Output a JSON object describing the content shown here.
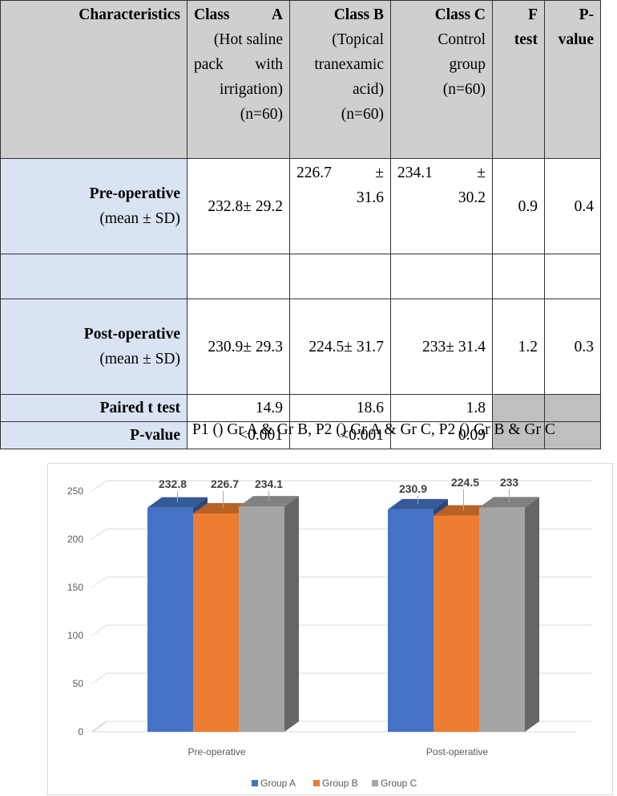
{
  "table": {
    "header": {
      "characteristics": "Characteristics",
      "class_a": [
        "Class",
        "A",
        "(Hot saline",
        "pack",
        "with",
        "irrigation)",
        "(n=60)"
      ],
      "class_b": [
        "Class B",
        "(Topical",
        "tranexamic",
        "acid)",
        "(n=60)"
      ],
      "class_c": [
        "Class C",
        "Control",
        "group",
        "(n=60)"
      ],
      "f_test": [
        "F",
        "test"
      ],
      "p_value": [
        "P-",
        "value"
      ]
    },
    "rows": {
      "pre": {
        "label": "Pre-operative",
        "sub": "(mean ± SD)",
        "a": "232.8± 29.2",
        "b_val": "226.7",
        "b_sd": "31.6",
        "c_val": "234.1",
        "c_sd": "30.2",
        "pm": "±",
        "f": "0.9",
        "p": "0.4"
      },
      "post": {
        "label": "Post-operative",
        "sub": "(mean ± SD)",
        "a": "230.9± 29.3",
        "b": "224.5± 31.7",
        "c": "233± 31.4",
        "f": "1.2",
        "p": "0.3"
      },
      "paired": {
        "label": "Paired t test",
        "a": "14.9",
        "b": "18.6",
        "c": "1.8"
      },
      "pval": {
        "label": "P-value",
        "a": "<0.001",
        "b": "<0.001",
        "c": "0.09"
      }
    },
    "footnote": "P1 () Gr A & Gr B, P2 () Gr A & Gr C, P2 () Gr B & Gr C"
  },
  "chart_data": {
    "type": "bar",
    "categories": [
      "Pre-operative",
      "Post-operative"
    ],
    "series": [
      {
        "name": "Group A",
        "values": [
          232.8,
          230.9
        ],
        "color": "#4472c4"
      },
      {
        "name": "Group B",
        "values": [
          226.7,
          224.5
        ],
        "color": "#ed7d31"
      },
      {
        "name": "Group C",
        "values": [
          234.1,
          233
        ],
        "color": "#a5a5a5"
      }
    ],
    "data_labels": [
      [
        "232.8",
        "226.7",
        "234.1"
      ],
      [
        "230.9",
        "224.5",
        "233"
      ]
    ],
    "yticks": [
      "0",
      "50",
      "100",
      "150",
      "200",
      "250"
    ],
    "ylim": [
      0,
      250
    ],
    "grid": true,
    "legend": "bottom",
    "title": "",
    "xlabel": "",
    "ylabel": ""
  }
}
